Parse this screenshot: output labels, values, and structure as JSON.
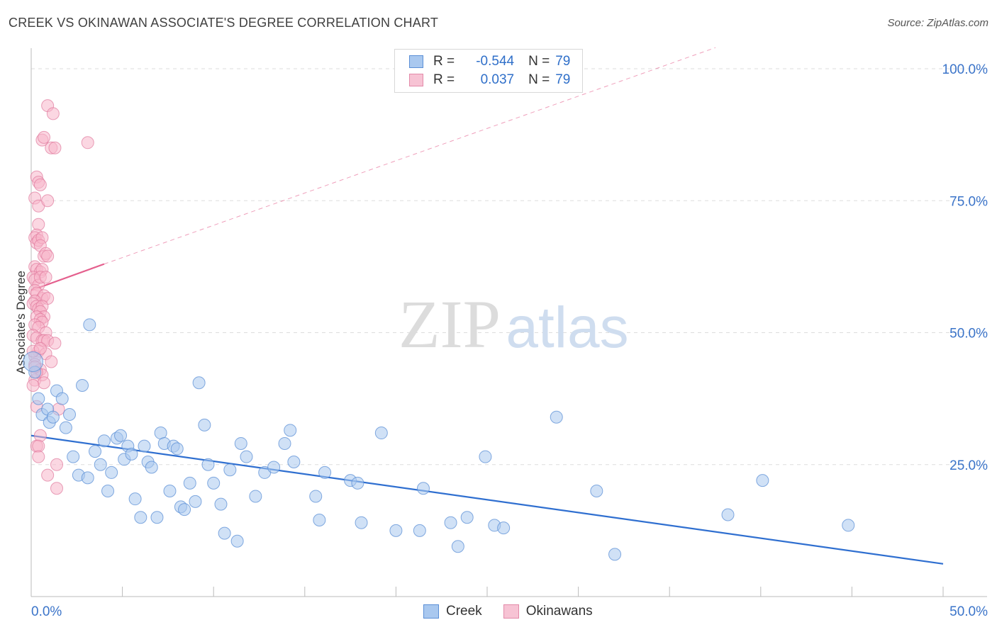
{
  "title": "CREEK VS OKINAWAN ASSOCIATE'S DEGREE CORRELATION CHART",
  "source": "Source: ZipAtlas.com",
  "watermark": {
    "zip": "ZIP",
    "atlas": "atlas"
  },
  "legend_top": [
    {
      "r_label": "R =",
      "r_value": "-0.544",
      "n_label": "N =",
      "n_value": "79"
    },
    {
      "r_label": "R =",
      "r_value": "0.037",
      "n_label": "N =",
      "n_value": "79"
    }
  ],
  "legend_bottom": [
    {
      "label": "Creek"
    },
    {
      "label": "Okinawans"
    }
  ],
  "colors": {
    "creek_fill": "#a9c8ef",
    "creek_stroke": "#5b8fd6",
    "creek_line": "#2f6fd0",
    "okinawan_fill": "#f7b6cb",
    "okinawan_stroke": "#e0799c",
    "okinawan_line": "#e45f8d",
    "axis_text": "#3b74c9",
    "grid": "#dddddd"
  },
  "chart_data": {
    "type": "scatter",
    "title": "CREEK VS OKINAWAN ASSOCIATE'S DEGREE CORRELATION CHART",
    "xlabel": "",
    "ylabel": "Associate's Degree",
    "xlim": [
      0,
      50
    ],
    "ylim": [
      0,
      100
    ],
    "x_tick_labels": [
      "0.0%",
      "50.0%"
    ],
    "y_tick_labels": [
      "100.0%",
      "75.0%",
      "50.0%",
      "25.0%"
    ],
    "y_gridlines": [
      25,
      50,
      75,
      100
    ],
    "series": [
      {
        "name": "Creek",
        "R": -0.544,
        "N": 79,
        "trend": {
          "x": [
            0,
            50
          ],
          "y": [
            30.5,
            6.2
          ],
          "style": "solid"
        },
        "points": [
          [
            0.2,
            42.5
          ],
          [
            0.4,
            37.5
          ],
          [
            0.6,
            34.5
          ],
          [
            0.9,
            35.5
          ],
          [
            1.0,
            33
          ],
          [
            1.2,
            34
          ],
          [
            1.4,
            39
          ],
          [
            1.7,
            37.5
          ],
          [
            2.1,
            34.5
          ],
          [
            2.8,
            40
          ],
          [
            3.2,
            51.5
          ],
          [
            1.9,
            32
          ],
          [
            2.3,
            26.5
          ],
          [
            2.6,
            23
          ],
          [
            3.1,
            22.5
          ],
          [
            3.5,
            27.5
          ],
          [
            3.8,
            25
          ],
          [
            4.0,
            29.5
          ],
          [
            4.2,
            20
          ],
          [
            4.4,
            23.5
          ],
          [
            4.7,
            30
          ],
          [
            4.9,
            30.5
          ],
          [
            5.1,
            26
          ],
          [
            5.3,
            28.5
          ],
          [
            5.5,
            27
          ],
          [
            5.7,
            18.5
          ],
          [
            6.0,
            15
          ],
          [
            6.2,
            28.5
          ],
          [
            6.4,
            25.5
          ],
          [
            6.6,
            24.5
          ],
          [
            6.9,
            15
          ],
          [
            7.1,
            31
          ],
          [
            7.3,
            29
          ],
          [
            7.6,
            20
          ],
          [
            7.8,
            28.5
          ],
          [
            8.0,
            28
          ],
          [
            8.2,
            17
          ],
          [
            8.4,
            16.5
          ],
          [
            8.7,
            21.5
          ],
          [
            9.0,
            18
          ],
          [
            9.2,
            40.5
          ],
          [
            9.5,
            32.5
          ],
          [
            9.7,
            25
          ],
          [
            10.0,
            21.5
          ],
          [
            10.4,
            17.5
          ],
          [
            10.6,
            12
          ],
          [
            10.9,
            24
          ],
          [
            11.3,
            10.5
          ],
          [
            11.5,
            29
          ],
          [
            11.8,
            26.5
          ],
          [
            12.3,
            19
          ],
          [
            12.8,
            23.5
          ],
          [
            13.3,
            24.5
          ],
          [
            13.9,
            29
          ],
          [
            14.2,
            31.5
          ],
          [
            14.4,
            25.5
          ],
          [
            15.6,
            19
          ],
          [
            15.8,
            14.5
          ],
          [
            16.1,
            23.5
          ],
          [
            17.5,
            22
          ],
          [
            17.9,
            21.5
          ],
          [
            18.1,
            14
          ],
          [
            19.2,
            31
          ],
          [
            20.0,
            12.5
          ],
          [
            21.3,
            12.5
          ],
          [
            21.5,
            20.5
          ],
          [
            23.0,
            14
          ],
          [
            23.4,
            9.5
          ],
          [
            23.9,
            15
          ],
          [
            24.9,
            26.5
          ],
          [
            25.4,
            13.5
          ],
          [
            25.9,
            13
          ],
          [
            28.8,
            34
          ],
          [
            31.0,
            20
          ],
          [
            32.0,
            8
          ],
          [
            38.2,
            15.5
          ],
          [
            40.1,
            22
          ],
          [
            44.8,
            13.5
          ],
          [
            0.1,
            44.5
          ]
        ]
      },
      {
        "name": "Okinawans",
        "R": 0.037,
        "N": 79,
        "trend": {
          "x": [
            0,
            4.0
          ],
          "y": [
            58.0,
            63.0
          ],
          "style": "solid",
          "extension_to": [
            50,
            119.3
          ],
          "extension_style": "dashed"
        },
        "points": [
          [
            0.9,
            93
          ],
          [
            1.2,
            91.5
          ],
          [
            0.6,
            86.5
          ],
          [
            0.7,
            87
          ],
          [
            1.1,
            85
          ],
          [
            1.3,
            85
          ],
          [
            3.1,
            86
          ],
          [
            0.3,
            79.5
          ],
          [
            0.4,
            78.5
          ],
          [
            0.5,
            78
          ],
          [
            0.2,
            75.5
          ],
          [
            0.4,
            74
          ],
          [
            0.9,
            75
          ],
          [
            0.4,
            70.5
          ],
          [
            0.3,
            68.5
          ],
          [
            0.2,
            68
          ],
          [
            0.3,
            67
          ],
          [
            0.4,
            67.5
          ],
          [
            0.6,
            68
          ],
          [
            0.5,
            66.5
          ],
          [
            0.7,
            64.5
          ],
          [
            0.8,
            65
          ],
          [
            0.9,
            64.5
          ],
          [
            0.2,
            62.5
          ],
          [
            0.3,
            62
          ],
          [
            0.5,
            61.5
          ],
          [
            0.6,
            62
          ],
          [
            0.1,
            60.5
          ],
          [
            0.2,
            60
          ],
          [
            0.4,
            59
          ],
          [
            0.5,
            60.5
          ],
          [
            0.8,
            60.5
          ],
          [
            0.2,
            58
          ],
          [
            0.3,
            57.5
          ],
          [
            0.6,
            56.5
          ],
          [
            0.7,
            57
          ],
          [
            0.9,
            56.5
          ],
          [
            0.2,
            56
          ],
          [
            0.1,
            55.5
          ],
          [
            0.3,
            55
          ],
          [
            0.4,
            54.5
          ],
          [
            0.6,
            55
          ],
          [
            0.5,
            54
          ],
          [
            0.7,
            53
          ],
          [
            0.3,
            53
          ],
          [
            0.5,
            52.5
          ],
          [
            0.6,
            52
          ],
          [
            0.2,
            51.5
          ],
          [
            0.4,
            51
          ],
          [
            0.8,
            50
          ],
          [
            0.1,
            49.5
          ],
          [
            0.3,
            49
          ],
          [
            0.6,
            48.5
          ],
          [
            0.7,
            48.5
          ],
          [
            0.9,
            48.5
          ],
          [
            1.3,
            48
          ],
          [
            0.4,
            46.5
          ],
          [
            0.8,
            46
          ],
          [
            0.2,
            45.5
          ],
          [
            1.1,
            44.5
          ],
          [
            0.2,
            44
          ],
          [
            0.5,
            43
          ],
          [
            0.6,
            42
          ],
          [
            0.2,
            41
          ],
          [
            0.7,
            40.5
          ],
          [
            0.3,
            42.5
          ],
          [
            0.1,
            40
          ],
          [
            0.3,
            36
          ],
          [
            1.5,
            35.5
          ],
          [
            0.5,
            30.5
          ],
          [
            0.3,
            28.5
          ],
          [
            0.4,
            28.5
          ],
          [
            0.4,
            26.5
          ],
          [
            1.4,
            25
          ],
          [
            0.9,
            23
          ],
          [
            1.4,
            20.5
          ],
          [
            0.1,
            46.5
          ],
          [
            0.2,
            43.5
          ],
          [
            0.5,
            47
          ]
        ]
      }
    ]
  }
}
